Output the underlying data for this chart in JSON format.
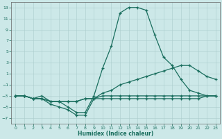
{
  "xlabel": "Humidex (Indice chaleur)",
  "background_color": "#cce8e8",
  "grid_color": "#aacccc",
  "line_color": "#1a6e5e",
  "x_values": [
    0,
    1,
    2,
    3,
    4,
    5,
    6,
    7,
    8,
    9,
    10,
    11,
    12,
    13,
    14,
    15,
    16,
    17,
    18,
    19,
    20,
    21,
    22,
    23
  ],
  "y_top": [
    -3,
    -3,
    -3.5,
    -3,
    -4,
    -4,
    -5,
    -6,
    -6,
    -3,
    2,
    6,
    12,
    13,
    13,
    12.5,
    8,
    4,
    2.5,
    0,
    -2,
    -2.5,
    -3,
    -3
  ],
  "y_upper_mid": [
    -3,
    -3,
    -3.5,
    -3.5,
    -4,
    -4,
    -4,
    -4,
    -3.5,
    -3.5,
    -2.5,
    -2,
    -1,
    -0.5,
    0,
    0.5,
    1,
    1.5,
    2,
    2.5,
    2.5,
    1.5,
    0.5,
    0
  ],
  "y_lower_mid": [
    -3,
    -3,
    -3.5,
    -3.5,
    -4,
    -4,
    -4,
    -4,
    -3.5,
    -3.5,
    -3,
    -3,
    -3,
    -3,
    -3,
    -3,
    -3,
    -3,
    -3,
    -3,
    -3,
    -3,
    -3,
    -3
  ],
  "y_bottom": [
    -3,
    -3,
    -3.5,
    -3.5,
    -4.5,
    -5,
    -5.5,
    -6.5,
    -6.5,
    -3.5,
    -3.5,
    -3.5,
    -3.5,
    -3.5,
    -3.5,
    -3.5,
    -3.5,
    -3.5,
    -3.5,
    -3.5,
    -3.5,
    -3.5,
    -3,
    -3
  ],
  "ylim": [
    -8,
    14
  ],
  "xlim": [
    -0.5,
    23.5
  ],
  "yticks": [
    -7,
    -5,
    -3,
    -1,
    1,
    3,
    5,
    7,
    9,
    11,
    13
  ],
  "xticks": [
    0,
    1,
    2,
    3,
    4,
    5,
    6,
    7,
    8,
    9,
    10,
    11,
    12,
    13,
    14,
    15,
    16,
    17,
    18,
    19,
    20,
    21,
    22,
    23
  ]
}
